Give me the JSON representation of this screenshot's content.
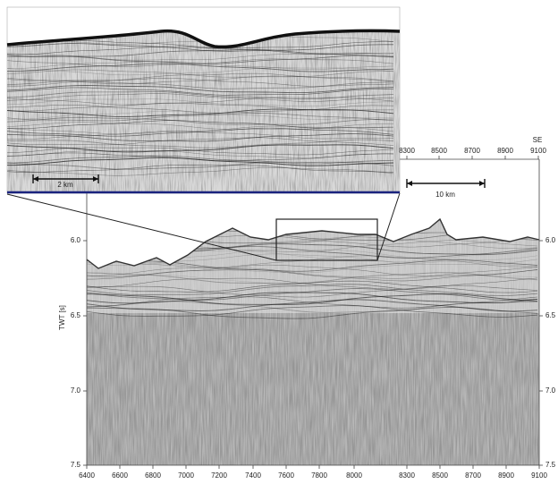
{
  "inset": {
    "scale_bar": "2 km"
  },
  "main": {
    "direction": "SE",
    "scale_bar": "10 km",
    "y_label": "TWT [s]",
    "x_ticks_top": [
      "8300",
      "8500",
      "8700",
      "8900",
      "9100"
    ],
    "x_ticks_bottom": [
      "6400",
      "6600",
      "6800",
      "7000",
      "7200",
      "7400",
      "7600",
      "7800",
      "8000",
      "8300",
      "8500",
      "8700",
      "8900",
      "9100"
    ],
    "y_ticks_left": [
      "6.0",
      "6.5",
      "7.0",
      "7.5"
    ],
    "y_ticks_right": [
      "6.0",
      "6.5",
      "7.0",
      "7.5"
    ]
  }
}
